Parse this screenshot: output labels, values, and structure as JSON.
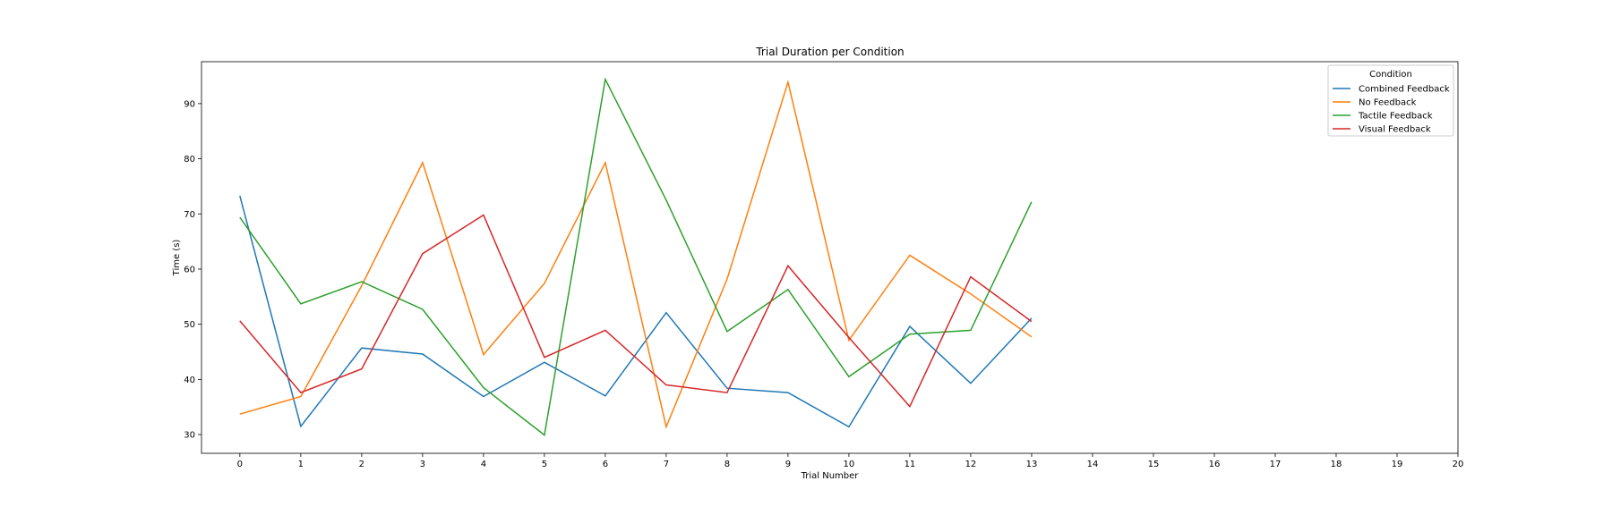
{
  "chart_data": {
    "type": "line",
    "title": "Trial Duration per Condition",
    "xlabel": "Trial Number",
    "ylabel": "Time (s)",
    "xlim": [
      -0.63,
      20
    ],
    "ylim": [
      26.6,
      97.6
    ],
    "xticks": [
      0,
      1,
      2,
      3,
      4,
      5,
      6,
      7,
      8,
      9,
      10,
      11,
      12,
      13,
      14,
      15,
      16,
      17,
      18,
      19,
      20
    ],
    "yticks": [
      30,
      40,
      50,
      60,
      70,
      80,
      90
    ],
    "grid": false,
    "legend": {
      "title": "Condition",
      "placement": "top-right"
    },
    "series": [
      {
        "name": "Combined Feedback",
        "color": "#1f77b4",
        "x": [
          0,
          1,
          2,
          3,
          4,
          5,
          6,
          7,
          8,
          9,
          10,
          11,
          12,
          13
        ],
        "y": [
          73.3,
          31.5,
          45.7,
          44.6,
          36.9,
          43.1,
          37.0,
          52.1,
          38.4,
          37.6,
          31.4,
          49.6,
          39.3,
          51.1
        ]
      },
      {
        "name": "No Feedback",
        "color": "#ff7f0e",
        "x": [
          0,
          1,
          2,
          3,
          4,
          5,
          6,
          7,
          8,
          9,
          10,
          11,
          12,
          13
        ],
        "y": [
          33.7,
          36.9,
          57.0,
          79.3,
          44.5,
          57.4,
          79.3,
          31.4,
          58.2,
          93.9,
          47.1,
          62.5,
          55.5,
          47.7
        ]
      },
      {
        "name": "Tactile Feedback",
        "color": "#2ca02c",
        "x": [
          0,
          1,
          2,
          3,
          4,
          5,
          6,
          7,
          8,
          9,
          10,
          11,
          12,
          13
        ],
        "y": [
          69.4,
          53.7,
          57.7,
          52.7,
          38.5,
          29.9,
          94.4,
          72.5,
          48.7,
          56.3,
          40.5,
          48.2,
          48.9,
          72.2
        ]
      },
      {
        "name": "Visual Feedback",
        "color": "#d62728",
        "x": [
          0,
          1,
          2,
          3,
          4,
          5,
          6,
          7,
          8,
          9,
          10,
          11,
          12,
          13
        ],
        "y": [
          50.6,
          37.6,
          41.9,
          62.8,
          69.8,
          44.0,
          48.9,
          39.0,
          37.6,
          60.6,
          47.6,
          35.1,
          58.6,
          50.5
        ]
      }
    ]
  }
}
